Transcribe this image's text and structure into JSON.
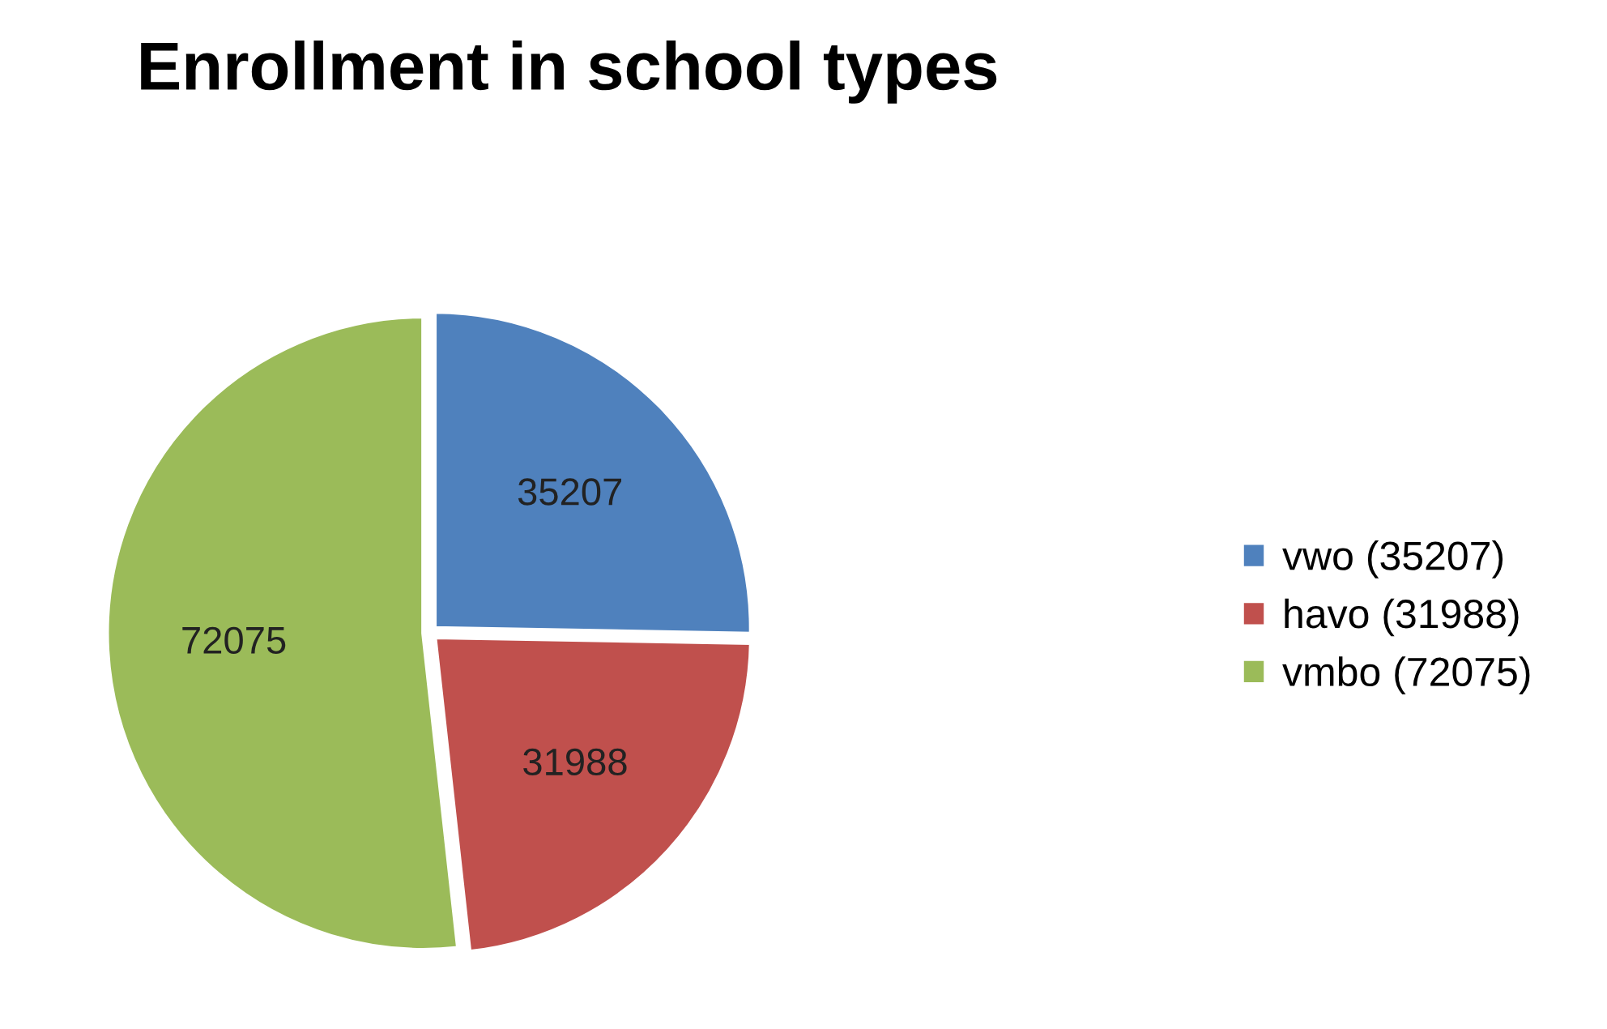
{
  "chart_data": {
    "type": "pie",
    "title": "Enrollment in school types",
    "categories": [
      "vwo (35207)",
      "havo (31988)",
      "vmbo (72075)"
    ],
    "values": [
      35207,
      31988,
      72075
    ],
    "colors": [
      "#4f81bd",
      "#c0504d",
      "#9bbb59"
    ],
    "data_labels": true,
    "legend": "right"
  }
}
